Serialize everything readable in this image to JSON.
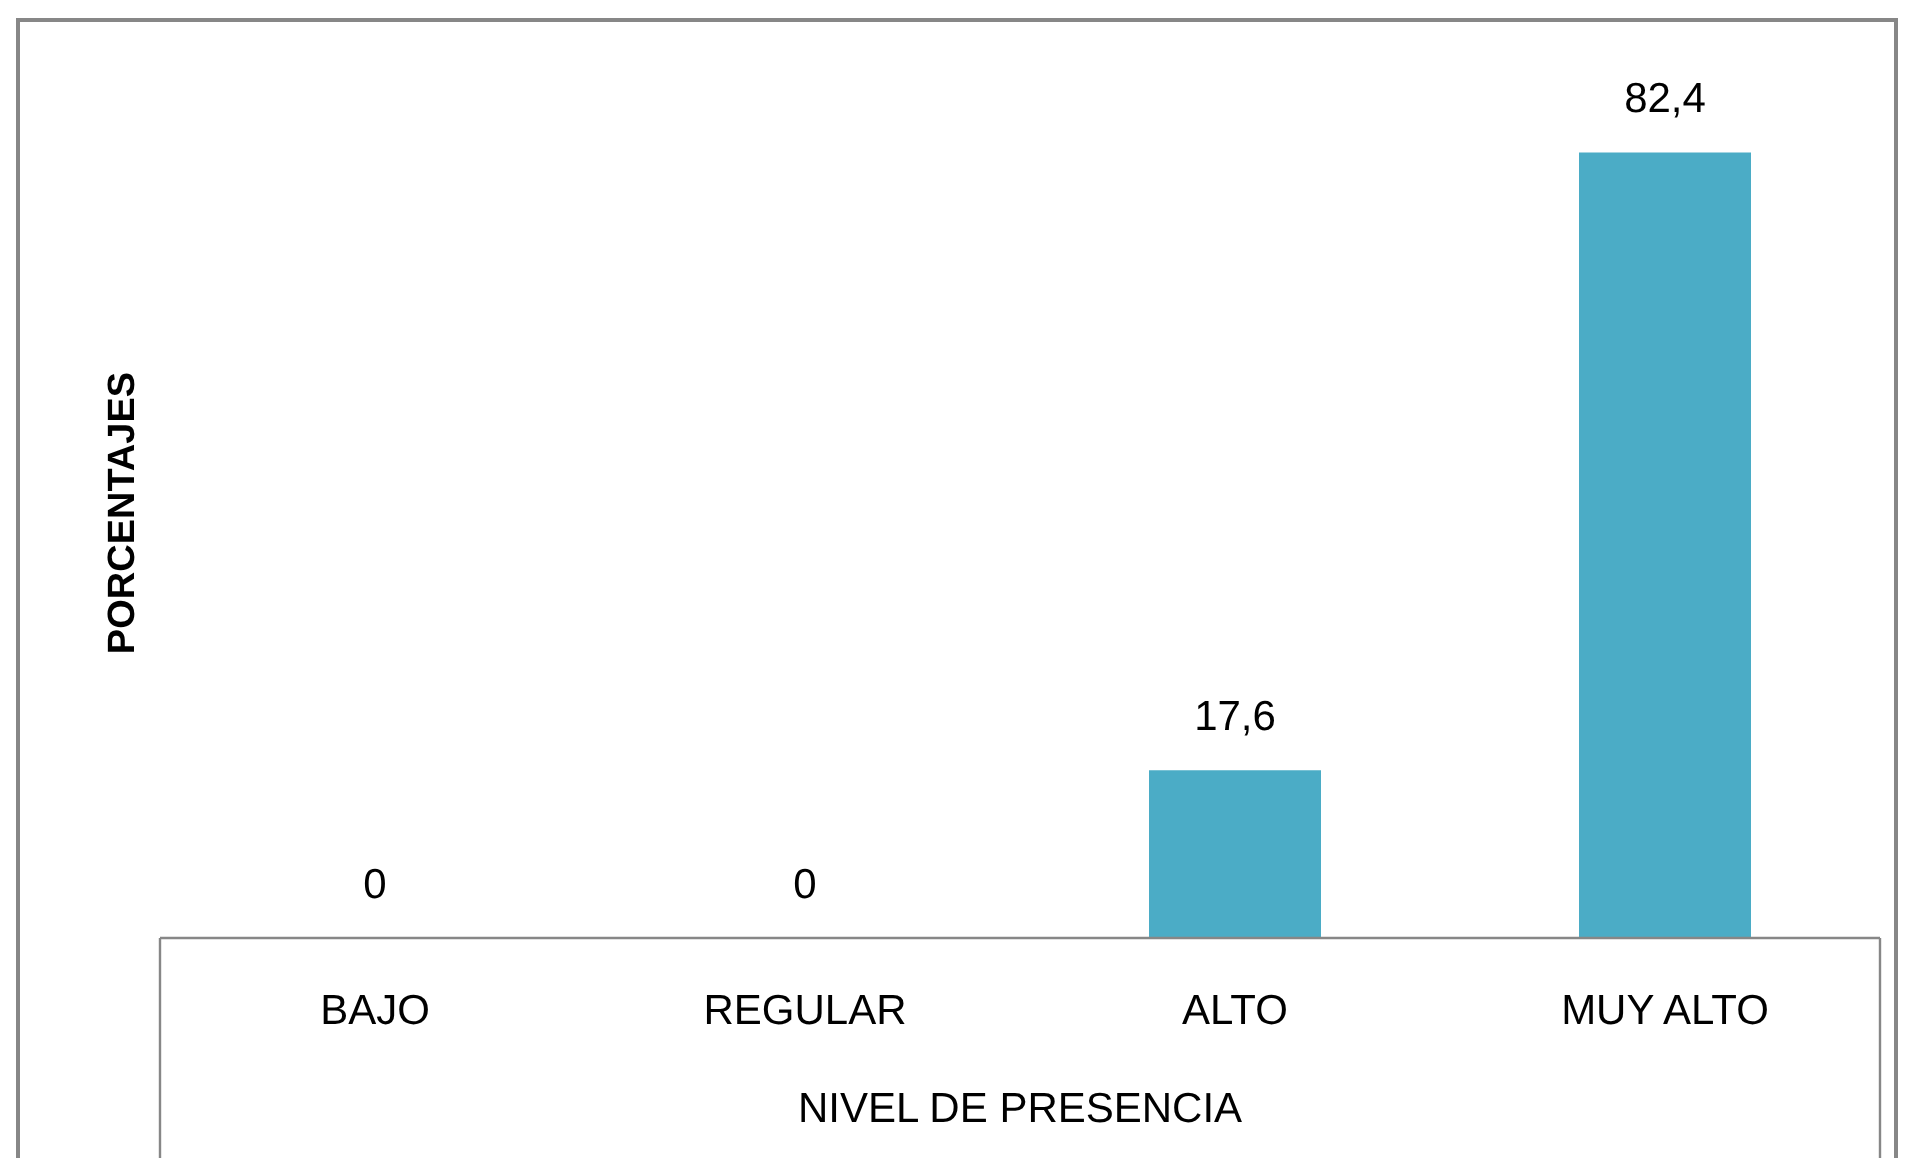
{
  "chart_data": {
    "type": "bar",
    "categories": [
      "BAJO",
      "REGULAR",
      "ALTO",
      "MUY ALTO"
    ],
    "values": [
      0,
      0,
      17.6,
      82.4
    ],
    "value_labels": [
      "0",
      "0",
      "17,6",
      "82,4"
    ],
    "color": "#4bacc6",
    "xlabel": "NIVEL DE PRESENCIA",
    "ylabel": "PORCENTAJES"
  }
}
